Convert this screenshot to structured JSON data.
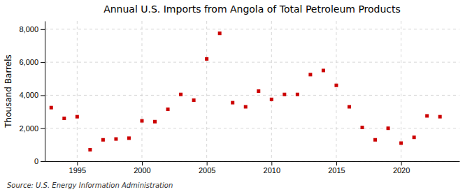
{
  "chart_data": {
    "type": "scatter",
    "title": "Annual U.S. Imports from Angola of Total Petroleum Products",
    "ylabel": "Thousand Barrels",
    "source": "Source: U.S. Energy Information Administration",
    "x": [
      1993,
      1994,
      1995,
      1996,
      1997,
      1998,
      1999,
      2000,
      2001,
      2002,
      2003,
      2004,
      2005,
      2006,
      2007,
      2008,
      2009,
      2010,
      2011,
      2012,
      2013,
      2014,
      2015,
      2016,
      2017,
      2018,
      2019,
      2020,
      2021,
      2022,
      2023
    ],
    "values": [
      3250,
      2600,
      2700,
      700,
      1300,
      1350,
      1400,
      2450,
      2400,
      3150,
      4050,
      3700,
      6200,
      7750,
      3550,
      3300,
      4250,
      3750,
      4050,
      4050,
      5250,
      5500,
      4600,
      3300,
      2050,
      1300,
      2000,
      1100,
      1450,
      2750,
      2700
    ],
    "color": "#cc0000",
    "marker": "square",
    "xlim": [
      1992.5,
      2024.5
    ],
    "ylim": [
      0,
      8500
    ],
    "xticks": [
      1995,
      2000,
      2005,
      2010,
      2015,
      2020
    ],
    "yticks": [
      0,
      {
        "value": 2000,
        "label": "2,000"
      },
      {
        "value": 4000,
        "label": "4,000"
      },
      {
        "value": 6000,
        "label": "6,000"
      },
      {
        "value": 8000,
        "label": "8,000"
      }
    ],
    "grid": true
  }
}
